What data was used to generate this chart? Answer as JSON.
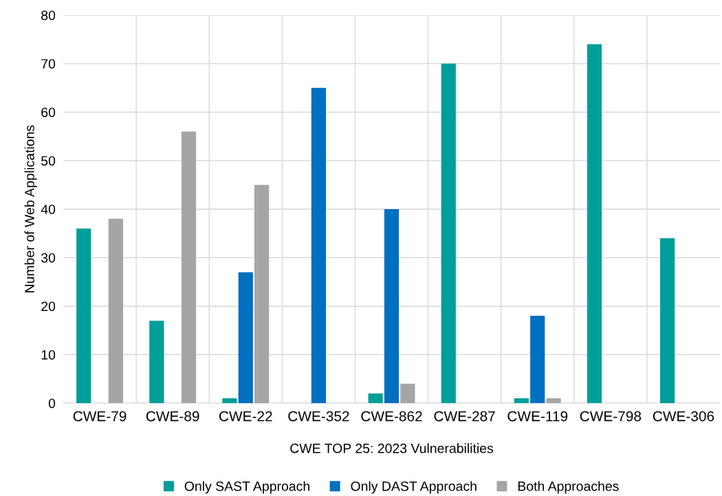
{
  "chart_data": {
    "type": "bar",
    "xlabel": "CWE TOP 25: 2023 Vulnerabilities",
    "ylabel": "Number of Web Applications",
    "categories": [
      "CWE-79",
      "CWE-89",
      "CWE-22",
      "CWE-352",
      "CWE-862",
      "CWE-287",
      "CWE-119",
      "CWE-798",
      "CWE-306"
    ],
    "series": [
      {
        "name": "Only SAST Approach",
        "color": "#009e9a",
        "values": [
          36,
          17,
          1,
          0,
          2,
          70,
          1,
          74,
          34
        ]
      },
      {
        "name": "Only DAST Approach",
        "color": "#0070c0",
        "values": [
          0,
          0,
          27,
          65,
          40,
          0,
          18,
          0,
          0
        ]
      },
      {
        "name": "Both Approaches",
        "color": "#a5a5a5",
        "values": [
          38,
          56,
          45,
          0,
          4,
          0,
          1,
          0,
          0
        ]
      }
    ],
    "ylim": [
      0,
      80
    ],
    "yticks": [
      0,
      10,
      20,
      30,
      40,
      50,
      60,
      70,
      80
    ],
    "grid": true,
    "legend": "bottom"
  }
}
